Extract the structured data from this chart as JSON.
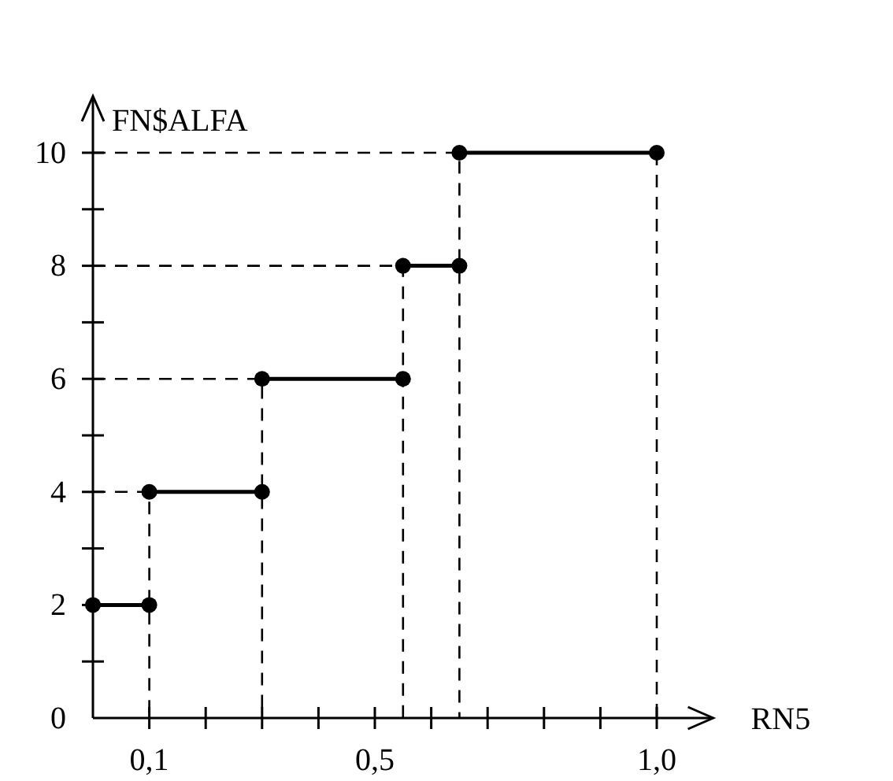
{
  "chart_data": {
    "type": "line",
    "xlabel": "RN5",
    "ylabel": "FN$ALFA",
    "xlim": [
      0,
      1.1
    ],
    "ylim": [
      0,
      11
    ],
    "xticks": [
      {
        "value": 0.1,
        "label": "0,1"
      },
      {
        "value": 0.2,
        "label": null
      },
      {
        "value": 0.3,
        "label": null
      },
      {
        "value": 0.4,
        "label": null
      },
      {
        "value": 0.5,
        "label": "0,5"
      },
      {
        "value": 0.6,
        "label": null
      },
      {
        "value": 0.7,
        "label": null
      },
      {
        "value": 0.8,
        "label": null
      },
      {
        "value": 0.9,
        "label": null
      },
      {
        "value": 1.0,
        "label": "1,0"
      }
    ],
    "yticks": [
      0,
      {
        "value": 1,
        "label": null
      },
      2,
      {
        "value": 3,
        "label": null
      },
      4,
      {
        "value": 5,
        "label": null
      },
      6,
      {
        "value": 7,
        "label": null
      },
      8,
      {
        "value": 9,
        "label": null
      },
      10
    ],
    "grid": false,
    "series": [
      {
        "color": "#000000",
        "line_style": "solid",
        "marker": "circle",
        "x": [
          0,
          0.1
        ],
        "values": [
          2,
          2
        ]
      },
      {
        "color": "#000000",
        "line_style": "solid",
        "marker": "circle",
        "x": [
          0.1,
          0.3
        ],
        "values": [
          4,
          4
        ]
      },
      {
        "color": "#000000",
        "line_style": "solid",
        "marker": "circle",
        "x": [
          0.3,
          0.55
        ],
        "values": [
          6,
          6
        ]
      },
      {
        "color": "#000000",
        "line_style": "solid",
        "marker": "circle",
        "x": [
          0.55,
          0.65
        ],
        "values": [
          8,
          8
        ]
      },
      {
        "color": "#000000",
        "line_style": "solid",
        "marker": "circle",
        "x": [
          0.65,
          1.0
        ],
        "values": [
          10,
          10
        ]
      },
      {
        "color": "#000000",
        "line_style": "dashed",
        "marker": "none",
        "x": [
          0,
          0.1,
          0.1
        ],
        "values": [
          4,
          4,
          0
        ]
      },
      {
        "color": "#000000",
        "line_style": "dashed",
        "marker": "none",
        "x": [
          0,
          0.3,
          0.3
        ],
        "values": [
          6,
          6,
          0
        ]
      },
      {
        "color": "#000000",
        "line_style": "dashed",
        "marker": "none",
        "x": [
          0,
          0.55,
          0.55
        ],
        "values": [
          8,
          8,
          0
        ]
      },
      {
        "color": "#000000",
        "line_style": "dashed",
        "marker": "none",
        "x": [
          0,
          0.65,
          0.65
        ],
        "values": [
          10,
          10,
          0
        ]
      },
      {
        "color": "#000000",
        "line_style": "dashed",
        "marker": "none",
        "x": [
          1.0,
          1.0
        ],
        "values": [
          10,
          0
        ]
      }
    ]
  }
}
